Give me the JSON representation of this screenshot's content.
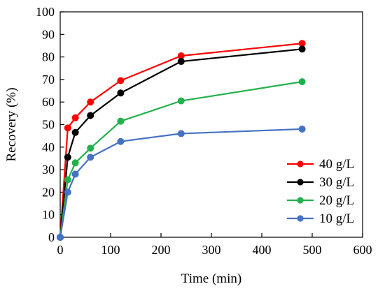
{
  "chart_data": {
    "type": "line",
    "title": "",
    "xlabel": "Time (min)",
    "ylabel": "Recovery (%)",
    "xlim": [
      0,
      600
    ],
    "ylim": [
      0,
      100
    ],
    "xticks": [
      0,
      100,
      200,
      300,
      400,
      500,
      600
    ],
    "yticks": [
      0,
      10,
      20,
      30,
      40,
      50,
      60,
      70,
      80,
      90,
      100
    ],
    "grid": false,
    "legend_position": "bottom-right",
    "series": [
      {
        "name": "40 g/L",
        "color": "#ff0000",
        "x": [
          0,
          15,
          30,
          60,
          120,
          240,
          480
        ],
        "y": [
          0,
          48.5,
          53,
          60,
          69.5,
          80.5,
          86
        ]
      },
      {
        "name": "30 g/L",
        "color": "#000000",
        "x": [
          0,
          15,
          30,
          60,
          120,
          240,
          480
        ],
        "y": [
          0,
          35.5,
          46.5,
          54,
          64,
          78,
          83.5
        ]
      },
      {
        "name": "20 g/L",
        "color": "#22b14c",
        "x": [
          0,
          15,
          30,
          60,
          120,
          240,
          480
        ],
        "y": [
          0,
          25.5,
          33,
          39.5,
          51.5,
          60.5,
          69
        ]
      },
      {
        "name": "10 g/L",
        "color": "#4472c4",
        "x": [
          0,
          15,
          30,
          60,
          120,
          240,
          480
        ],
        "y": [
          0,
          20,
          28,
          35.5,
          42.5,
          46,
          48
        ]
      }
    ]
  }
}
